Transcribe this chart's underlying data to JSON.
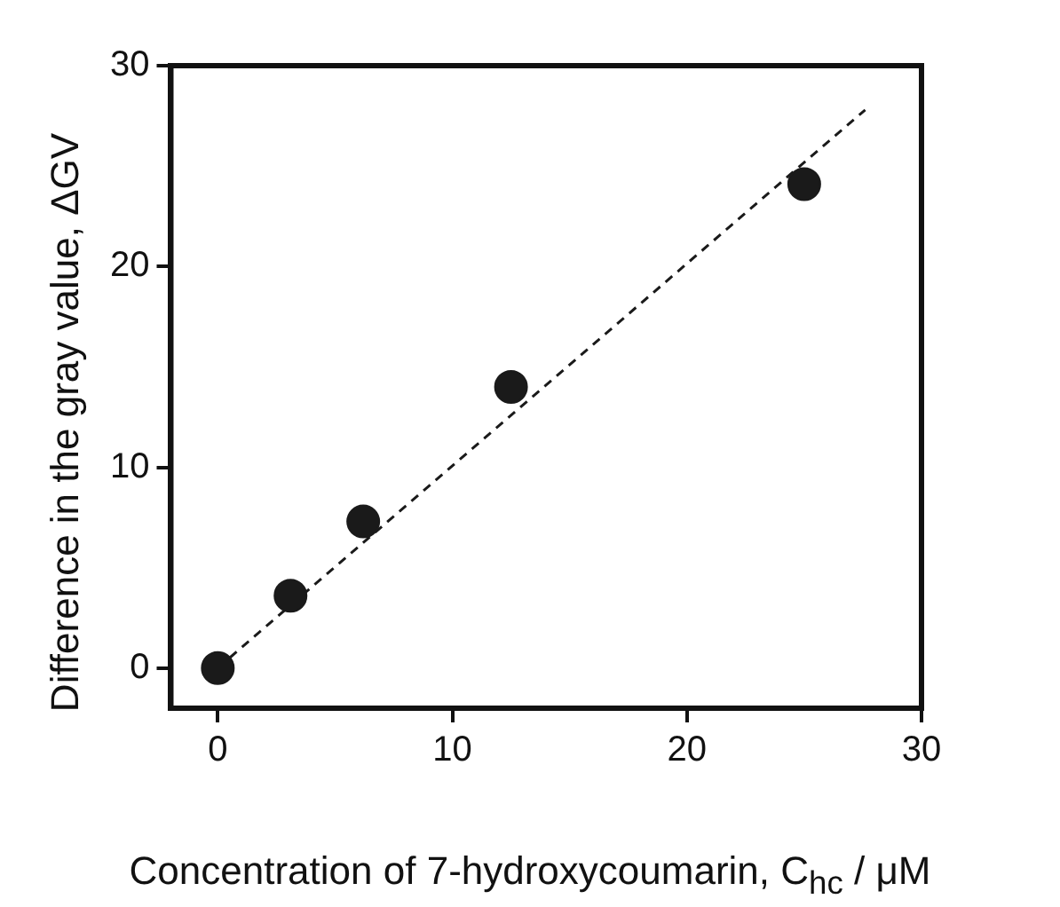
{
  "chart_data": {
    "type": "scatter",
    "xlabel": "Concentration of 7-hydroxycoumarin, C$_{hc}$ / μM",
    "ylabel": "Difference in the gray value, ΔGV",
    "xlim": [
      -2,
      30
    ],
    "ylim": [
      -2,
      30
    ],
    "xticks": [
      0,
      10,
      20,
      30
    ],
    "yticks": [
      0,
      10,
      20,
      30
    ],
    "grid": false,
    "legend": false,
    "marker": "circle",
    "series": [
      {
        "type": "scatter",
        "color": "#1a1a1a",
        "x": [
          0,
          3.1,
          6.2,
          12.5,
          25
        ],
        "values": [
          0,
          3.6,
          7.3,
          14,
          24.1
        ]
      },
      {
        "type": "line",
        "color": "#1a1a1a",
        "line_style": "dashed",
        "marker": "none",
        "x": [
          0,
          27.6
        ],
        "values": [
          0,
          27.8
        ]
      }
    ]
  }
}
